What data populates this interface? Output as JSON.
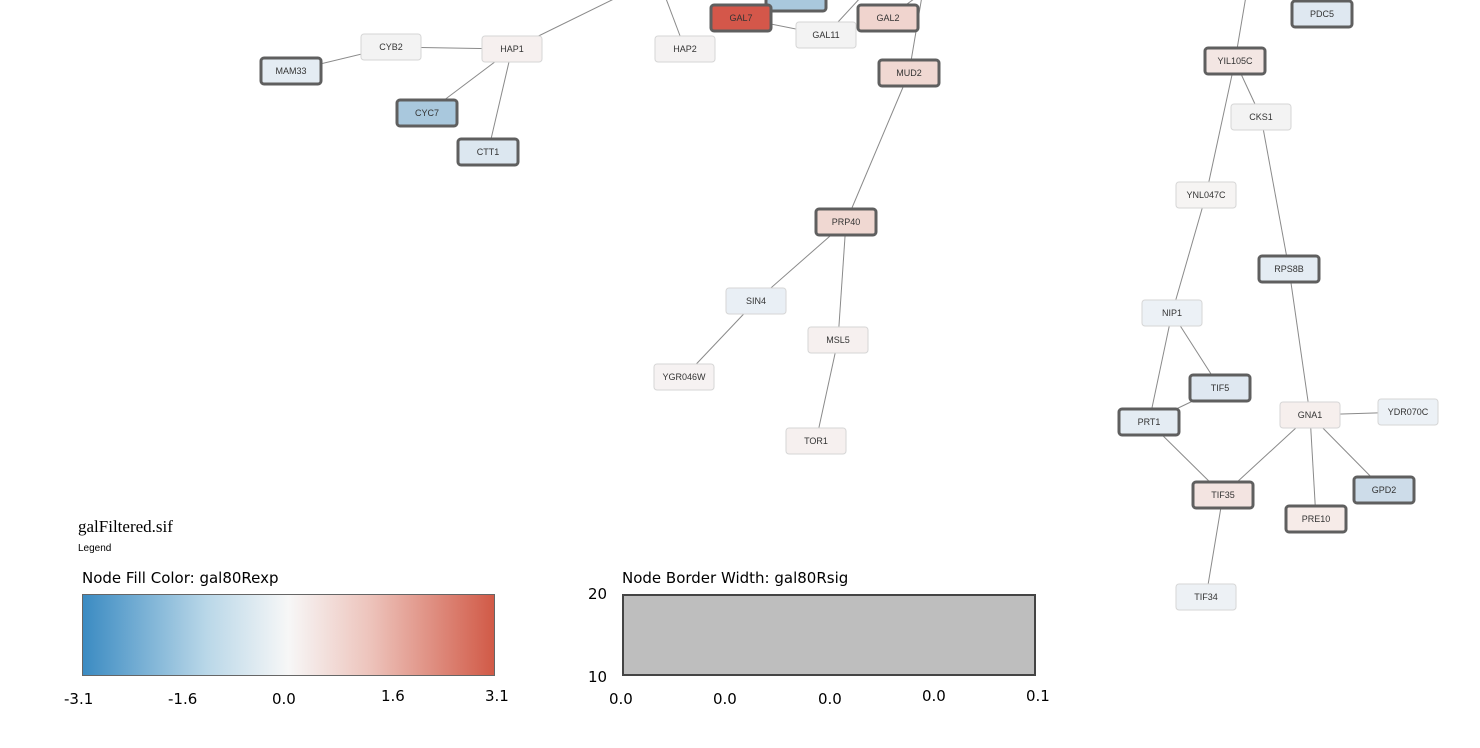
{
  "nodes": [
    {
      "id": "MAM33",
      "fill": "#e4ecf3",
      "thick": true
    },
    {
      "id": "CYB2",
      "fill": "#f3f3f3",
      "thick": false
    },
    {
      "id": "HAP1",
      "fill": "#f6f0ef",
      "thick": false
    },
    {
      "id": "CYC7",
      "fill": "#a9c8dd",
      "thick": true
    },
    {
      "id": "CTT1",
      "fill": "#dce7f0",
      "thick": true
    },
    {
      "id": "HAP2",
      "fill": "#f4f2f2",
      "thick": false
    },
    {
      "id": "GAL7",
      "fill": "#d4574a",
      "thick": true
    },
    {
      "id": "GAL11",
      "fill": "#f3f3f3",
      "thick": false
    },
    {
      "id": "GAL2",
      "fill": "#f0d4ce",
      "thick": true
    },
    {
      "id": "MUD2",
      "fill": "#f0d8d2",
      "thick": true
    },
    {
      "id": "PRP40",
      "fill": "#f0d8d2",
      "thick": true
    },
    {
      "id": "SIN4",
      "fill": "#e9eff5",
      "thick": false
    },
    {
      "id": "MSL5",
      "fill": "#f6f0ef",
      "thick": false
    },
    {
      "id": "YGR046W",
      "fill": "#f6f2f2",
      "thick": false
    },
    {
      "id": "TOR1",
      "fill": "#f6f0ef",
      "thick": false
    },
    {
      "id": "PDC5",
      "fill": "#dfe8f1",
      "thick": true
    },
    {
      "id": "YIL105C",
      "fill": "#f3e6e3",
      "thick": true
    },
    {
      "id": "CKS1",
      "fill": "#f3f3f3",
      "thick": false
    },
    {
      "id": "YNL047C",
      "fill": "#f6f4f3",
      "thick": false
    },
    {
      "id": "RPS8B",
      "fill": "#e4ecf3",
      "thick": true
    },
    {
      "id": "NIP1",
      "fill": "#ecf1f6",
      "thick": false
    },
    {
      "id": "TIF5",
      "fill": "#dfe8f1",
      "thick": true
    },
    {
      "id": "PRT1",
      "fill": "#e4ecf3",
      "thick": true
    },
    {
      "id": "GNA1",
      "fill": "#f6efed",
      "thick": false
    },
    {
      "id": "YDR070C",
      "fill": "#ecf1f6",
      "thick": false
    },
    {
      "id": "TIF35",
      "fill": "#f3e4e1",
      "thick": true
    },
    {
      "id": "GPD2",
      "fill": "#cddce9",
      "thick": true
    },
    {
      "id": "PRE10",
      "fill": "#f6ebe8",
      "thick": true
    },
    {
      "id": "TIF34",
      "fill": "#edf1f5",
      "thick": false
    }
  ],
  "partial_nodes": [
    {
      "id": "top-cut-node",
      "fill": "#a9c8dd"
    }
  ],
  "edges": [
    [
      "MAM33",
      "CYB2"
    ],
    [
      "CYB2",
      "HAP1"
    ],
    [
      "HAP1",
      "CYC7"
    ],
    [
      "HAP1",
      "CTT1"
    ],
    [
      "HAP1",
      "off-top-left"
    ],
    [
      "HAP2",
      "off-top-hap2"
    ],
    [
      "GAL7",
      "GAL11"
    ],
    [
      "GAL11",
      "off-top-gal11"
    ],
    [
      "GAL2",
      "off-top-gal2"
    ],
    [
      "MUD2",
      "off-top-mud2"
    ],
    [
      "MUD2",
      "PRP40"
    ],
    [
      "PRP40",
      "SIN4"
    ],
    [
      "PRP40",
      "MSL5"
    ],
    [
      "SIN4",
      "YGR046W"
    ],
    [
      "MSL5",
      "TOR1"
    ],
    [
      "YIL105C",
      "off-top-yil"
    ],
    [
      "YIL105C",
      "CKS1"
    ],
    [
      "YIL105C",
      "YNL047C"
    ],
    [
      "CKS1",
      "RPS8B"
    ],
    [
      "YNL047C",
      "NIP1"
    ],
    [
      "RPS8B",
      "GNA1"
    ],
    [
      "NIP1",
      "TIF5"
    ],
    [
      "NIP1",
      "PRT1"
    ],
    [
      "TIF5",
      "PRT1"
    ],
    [
      "PRT1",
      "TIF35"
    ],
    [
      "GNA1",
      "TIF35"
    ],
    [
      "GNA1",
      "YDR070C"
    ],
    [
      "GNA1",
      "GPD2"
    ],
    [
      "GNA1",
      "PRE10"
    ],
    [
      "TIF35",
      "TIF34"
    ]
  ],
  "legend": {
    "title": "galFiltered.sif",
    "subtitle": "Legend",
    "fill_color": {
      "label": "Node Fill Color:  gal80Rexp",
      "ticks": [
        "-3.1",
        "-1.6",
        "0.0",
        "1.6",
        "3.1"
      ],
      "colors": {
        "low": "#3b8bc2",
        "mid": "#f7f7f7",
        "high": "#d15a47"
      }
    },
    "border_width": {
      "label": "Node Border Width:  gal80Rsig",
      "y_ticks": [
        "20",
        "10"
      ],
      "x_ticks": [
        "0.0",
        "0.0",
        "0.0",
        "0.0",
        "0.1"
      ]
    }
  }
}
